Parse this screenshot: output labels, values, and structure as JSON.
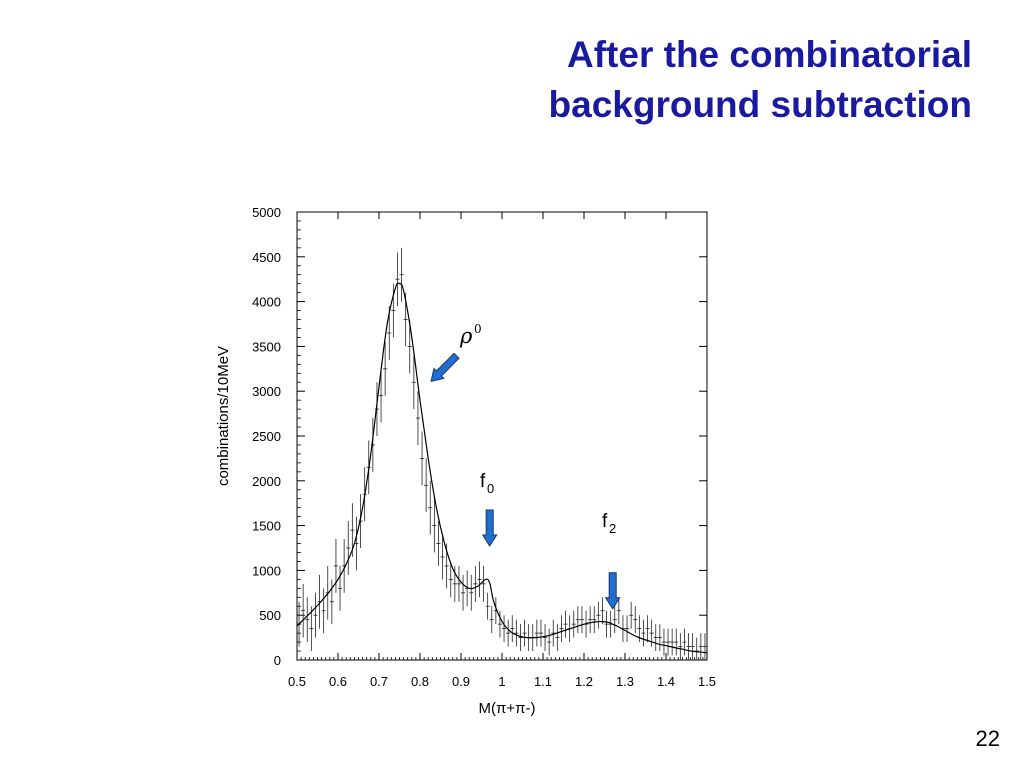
{
  "slide": {
    "title_line1": "After the combinatorial",
    "title_line2": "background subtraction",
    "page_number": "22"
  },
  "colors": {
    "title": "#1a1aa0",
    "arrow_fill": "#1f6fd1",
    "arrow_stroke": "#16336e",
    "axes": "#000000"
  },
  "chart_data": {
    "type": "scatter",
    "title": "",
    "xlabel": "M(π+π-)",
    "ylabel": "combinations/10MeV",
    "xlim": [
      0.5,
      1.5
    ],
    "ylim": [
      0,
      5000
    ],
    "xticks": [
      0.5,
      0.6,
      0.7,
      0.8,
      0.9,
      1.0,
      1.1,
      1.2,
      1.3,
      1.4,
      1.5
    ],
    "xtick_labels": [
      "0.5",
      "0.6",
      "0.7",
      "0.8",
      "0.9",
      "1",
      "1.1",
      "1.2",
      "1.3",
      "1.4",
      "1.5"
    ],
    "yticks": [
      0,
      500,
      1000,
      1500,
      2000,
      2500,
      3000,
      3500,
      4000,
      4500,
      5000
    ],
    "ytick_labels": [
      "0",
      "500",
      "1000",
      "1500",
      "2000",
      "2500",
      "3000",
      "3500",
      "4000",
      "4500",
      "5000"
    ],
    "grid": false,
    "series": [
      {
        "kind": "data-points",
        "x": [
          0.505,
          0.515,
          0.525,
          0.535,
          0.545,
          0.555,
          0.565,
          0.575,
          0.585,
          0.595,
          0.605,
          0.615,
          0.625,
          0.635,
          0.645,
          0.655,
          0.665,
          0.675,
          0.685,
          0.695,
          0.705,
          0.715,
          0.725,
          0.735,
          0.745,
          0.755,
          0.765,
          0.775,
          0.785,
          0.795,
          0.805,
          0.815,
          0.825,
          0.835,
          0.845,
          0.855,
          0.865,
          0.875,
          0.885,
          0.895,
          0.905,
          0.915,
          0.925,
          0.935,
          0.945,
          0.955,
          0.965,
          0.975,
          0.985,
          0.995,
          1.005,
          1.015,
          1.025,
          1.035,
          1.045,
          1.055,
          1.065,
          1.075,
          1.085,
          1.095,
          1.105,
          1.115,
          1.125,
          1.135,
          1.145,
          1.155,
          1.165,
          1.175,
          1.185,
          1.195,
          1.205,
          1.215,
          1.225,
          1.235,
          1.245,
          1.255,
          1.265,
          1.275,
          1.285,
          1.295,
          1.305,
          1.315,
          1.325,
          1.335,
          1.345,
          1.355,
          1.365,
          1.375,
          1.385,
          1.395,
          1.405,
          1.415,
          1.425,
          1.435,
          1.445,
          1.455,
          1.465,
          1.475,
          1.485,
          1.495
        ],
        "y": [
          400,
          550,
          450,
          350,
          500,
          650,
          550,
          750,
          650,
          1050,
          800,
          1050,
          1250,
          1450,
          1300,
          1550,
          1850,
          2150,
          2400,
          2800,
          2950,
          3250,
          3650,
          3900,
          4250,
          4300,
          3800,
          3500,
          3100,
          2700,
          2250,
          1950,
          1700,
          1500,
          1300,
          1150,
          1050,
          900,
          850,
          850,
          750,
          800,
          750,
          850,
          900,
          850,
          600,
          450,
          550,
          400,
          350,
          300,
          350,
          300,
          250,
          300,
          250,
          250,
          300,
          300,
          250,
          200,
          300,
          250,
          350,
          400,
          350,
          400,
          450,
          450,
          400,
          450,
          450,
          500,
          550,
          400,
          400,
          450,
          550,
          350,
          350,
          500,
          450,
          350,
          300,
          350,
          300,
          250,
          250,
          200,
          200,
          200,
          200,
          150,
          200,
          150,
          150,
          100,
          150,
          150
        ],
        "yerr": [
          250,
          300,
          250,
          250,
          250,
          300,
          250,
          300,
          250,
          300,
          250,
          300,
          300,
          300,
          300,
          300,
          300,
          300,
          300,
          300,
          300,
          300,
          300,
          300,
          300,
          300,
          300,
          300,
          300,
          300,
          300,
          300,
          300,
          300,
          250,
          250,
          250,
          200,
          200,
          200,
          200,
          200,
          200,
          200,
          200,
          200,
          150,
          150,
          150,
          150,
          150,
          150,
          150,
          150,
          150,
          150,
          150,
          150,
          150,
          150,
          150,
          150,
          150,
          150,
          150,
          150,
          150,
          150,
          150,
          150,
          150,
          150,
          150,
          150,
          150,
          150,
          150,
          150,
          150,
          150,
          150,
          150,
          150,
          150,
          150,
          150,
          150,
          150,
          150,
          150,
          150,
          150,
          150,
          150,
          150,
          150,
          150,
          150,
          150,
          150
        ]
      },
      {
        "kind": "fit-curve",
        "x": [
          0.5,
          0.52,
          0.54,
          0.56,
          0.58,
          0.6,
          0.62,
          0.64,
          0.66,
          0.68,
          0.7,
          0.72,
          0.74,
          0.75,
          0.76,
          0.78,
          0.8,
          0.82,
          0.84,
          0.86,
          0.88,
          0.9,
          0.92,
          0.94,
          0.96,
          0.97,
          0.98,
          1.0,
          1.02,
          1.04,
          1.06,
          1.08,
          1.1,
          1.12,
          1.14,
          1.16,
          1.18,
          1.2,
          1.22,
          1.24,
          1.26,
          1.27,
          1.28,
          1.3,
          1.32,
          1.34,
          1.36,
          1.38,
          1.4,
          1.42,
          1.44,
          1.46,
          1.48,
          1.5
        ],
        "y": [
          380,
          470,
          560,
          660,
          770,
          900,
          1070,
          1300,
          1700,
          2300,
          3050,
          3750,
          4150,
          4200,
          4120,
          3600,
          2900,
          2250,
          1700,
          1300,
          1020,
          870,
          800,
          820,
          900,
          860,
          650,
          430,
          320,
          270,
          250,
          250,
          260,
          280,
          310,
          340,
          370,
          400,
          420,
          430,
          420,
          400,
          380,
          330,
          280,
          240,
          210,
          180,
          160,
          140,
          120,
          100,
          90,
          80
        ]
      }
    ],
    "annotations": [
      {
        "label": "ρ0",
        "symbol": "ρ",
        "superscript": "0",
        "points_to_x": 0.81,
        "points_to_y": 3200
      },
      {
        "label": "f0",
        "base": "f",
        "subscript": "0",
        "points_to_x": 0.97,
        "points_to_y": 1250
      },
      {
        "label": "f2",
        "base": "f",
        "subscript": "2",
        "points_to_x": 1.27,
        "points_to_y": 750
      }
    ]
  }
}
